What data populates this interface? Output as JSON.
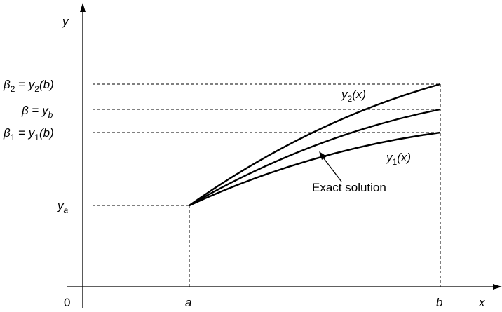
{
  "axes": {
    "x_name": "x",
    "y_name": "y",
    "origin": "0"
  },
  "x_ticks": {
    "a": "a",
    "b": "b"
  },
  "y_levels": {
    "beta2": {
      "left": "β",
      "sub": "2",
      "mid": " = ",
      "fn": "y",
      "fn_sub": "2",
      "arg": "(b)"
    },
    "beta": {
      "left": "β",
      "mid": " = ",
      "fn": "y",
      "fn_sub": "b"
    },
    "beta1": {
      "left": "β",
      "sub": "1",
      "mid": " = ",
      "fn": "y",
      "fn_sub": "1",
      "arg": "(b)"
    },
    "ya": {
      "fn": "y",
      "fn_sub": "a"
    }
  },
  "curves": {
    "upper": {
      "name": "y",
      "sub": "2",
      "arg": "(x)"
    },
    "lower": {
      "name": "y",
      "sub": "1",
      "arg": "(x)"
    },
    "middle": {
      "label": "Exact solution"
    }
  },
  "colors": {
    "ink": "#000000",
    "background": "#ffffff"
  }
}
